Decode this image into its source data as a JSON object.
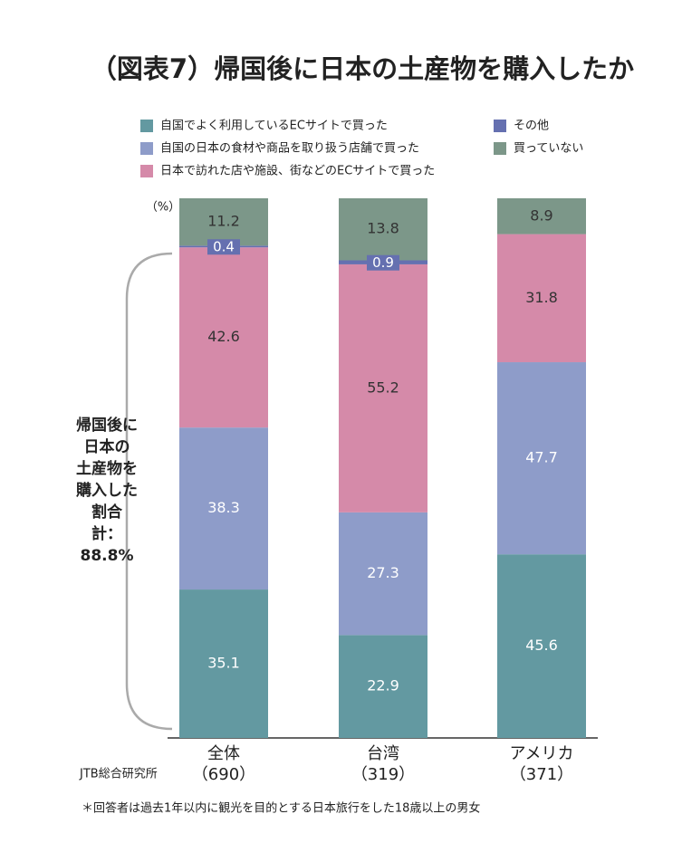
{
  "chart_data": {
    "type": "bar",
    "stacked": true,
    "title": "（図表7）帰国後に日本の土産物を購入したか",
    "unit_label": "（%）",
    "categories": [
      "全体",
      "台湾",
      "アメリカ"
    ],
    "sample_sizes": [
      "（690）",
      "（319）",
      "（371）"
    ],
    "series": [
      {
        "name": "自国でよく利用しているECサイトで買った",
        "color": "#6399a1",
        "values": [
          35.1,
          22.9,
          45.6
        ]
      },
      {
        "name": "自国の日本の食材や商品を取り扱う店舗で買った",
        "color": "#8e9cc9",
        "values": [
          38.3,
          27.3,
          47.7
        ]
      },
      {
        "name": "日本で訪れた店や施設、街などのECサイトで買った",
        "color": "#d58aa9",
        "values": [
          42.6,
          55.2,
          31.8
        ]
      },
      {
        "name": "その他",
        "color": "#6570b0",
        "values": [
          0.4,
          0.9,
          null
        ]
      },
      {
        "name": "買っていない",
        "color": "#7c9789",
        "values": [
          11.2,
          13.8,
          8.9
        ]
      }
    ],
    "annotation": [
      "帰国後に",
      "日本の",
      "土産物を",
      "購入した",
      "割合",
      "計：",
      "88.8%"
    ],
    "source": "JTB総合研究所",
    "footnote": "＊回答者は過去1年以内に観光を目的とする日本旅行をした18歳以上の男女"
  }
}
